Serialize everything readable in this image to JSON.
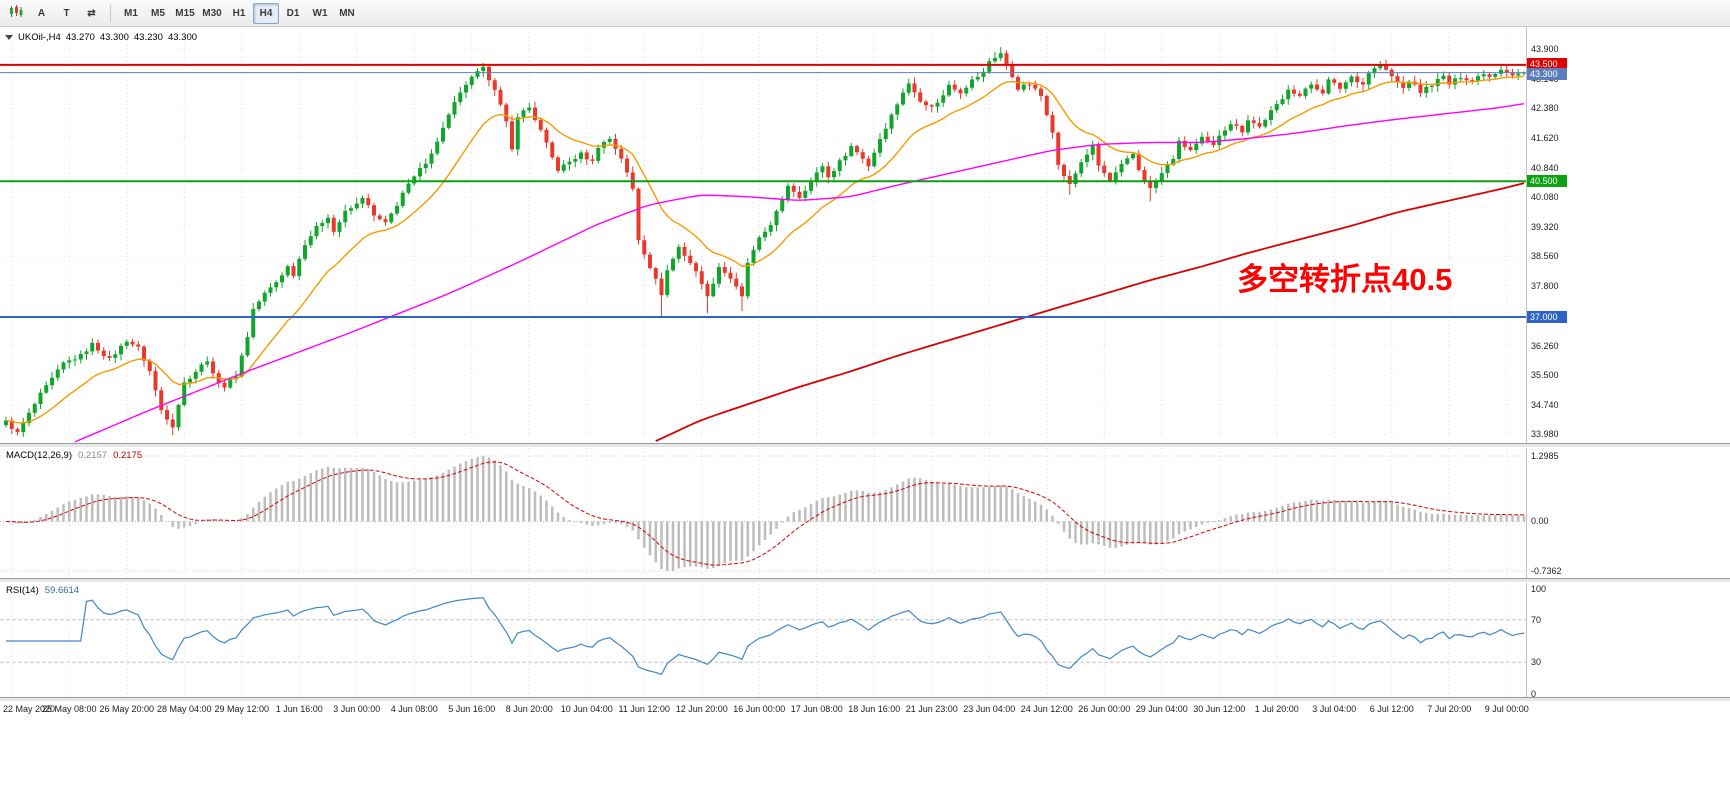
{
  "toolbar": {
    "cursor_label": "A",
    "text_label": "T",
    "cycle_label": "⇄",
    "timeframes": [
      {
        "label": "M1",
        "active": false
      },
      {
        "label": "M5",
        "active": false
      },
      {
        "label": "M15",
        "active": false
      },
      {
        "label": "M30",
        "active": false
      },
      {
        "label": "H1",
        "active": false
      },
      {
        "label": "H4",
        "active": true
      },
      {
        "label": "D1",
        "active": false
      },
      {
        "label": "W1",
        "active": false
      },
      {
        "label": "MN",
        "active": false
      }
    ]
  },
  "chart_header": {
    "symbol_period": "UKOil-,H4",
    "open": "43.270",
    "high": "43.300",
    "low": "43.230",
    "close": "43.300"
  },
  "annotation": {
    "text": "多空转折点40.5",
    "color": "#ff0000"
  },
  "price_axis": {
    "ticks": [
      {
        "label": "43.900",
        "value": 43.9
      },
      {
        "label": "43.140",
        "value": 43.14
      },
      {
        "label": "42.380",
        "value": 42.38
      },
      {
        "label": "41.620",
        "value": 41.62
      },
      {
        "label": "40.840",
        "value": 40.84
      },
      {
        "label": "40.080",
        "value": 40.08
      },
      {
        "label": "39.320",
        "value": 39.32
      },
      {
        "label": "38.560",
        "value": 38.56
      },
      {
        "label": "37.800",
        "value": 37.8
      },
      {
        "label": "36.260",
        "value": 36.26
      },
      {
        "label": "35.500",
        "value": 35.5
      },
      {
        "label": "34.740",
        "value": 34.74
      },
      {
        "label": "33.980",
        "value": 33.98
      }
    ]
  },
  "time_axis": [
    {
      "label": "22 May 2020",
      "bar": 1
    },
    {
      "label": "25 May 08:00",
      "bar": 11
    },
    {
      "label": "26 May 20:00",
      "bar": 21
    },
    {
      "label": "28 May 04:00",
      "bar": 31
    },
    {
      "label": "29 May 12:00",
      "bar": 41
    },
    {
      "label": "1 Jun 16:00",
      "bar": 51
    },
    {
      "label": "3 Jun 00:00",
      "bar": 61
    },
    {
      "label": "4 Jun 08:00",
      "bar": 71
    },
    {
      "label": "5 Jun 16:00",
      "bar": 81
    },
    {
      "label": "8 Jun 20:00",
      "bar": 91
    },
    {
      "label": "10 Jun 04:00",
      "bar": 101
    },
    {
      "label": "11 Jun 12:00",
      "bar": 111
    },
    {
      "label": "12 Jun 20:00",
      "bar": 121
    },
    {
      "label": "16 Jun 00:00",
      "bar": 131
    },
    {
      "label": "17 Jun 08:00",
      "bar": 141
    },
    {
      "label": "18 Jun 16:00",
      "bar": 151
    },
    {
      "label": "21 Jun 23:00",
      "bar": 161
    },
    {
      "label": "23 Jun 04:00",
      "bar": 171
    },
    {
      "label": "24 Jun 12:00",
      "bar": 181
    },
    {
      "label": "26 Jun 00:00",
      "bar": 191
    },
    {
      "label": "29 Jun 04:00",
      "bar": 201
    },
    {
      "label": "30 Jun 12:00",
      "bar": 211
    },
    {
      "label": "1 Jul 20:00",
      "bar": 221
    },
    {
      "label": "3 Jul 04:00",
      "bar": 231
    },
    {
      "label": "6 Jul 12:00",
      "bar": 241
    },
    {
      "label": "7 Jul 20:00",
      "bar": 251
    },
    {
      "label": "9 Jul 00:00",
      "bar": 261
    }
  ],
  "macd_panel": {
    "title": "MACD(12,26,9)",
    "value1": "0.2157",
    "value2": "0.2175",
    "axis_labels": [
      "1.2985",
      "0.00",
      "-0.7362"
    ]
  },
  "rsi_panel": {
    "title": "RSI(14)",
    "value": "59.6614",
    "axis_labels": [
      {
        "label": "100",
        "value": 100
      },
      {
        "label": "70",
        "value": 70
      },
      {
        "label": "30",
        "value": 30
      },
      {
        "label": "0",
        "value": 0
      }
    ]
  },
  "chart_data": {
    "type": "candlestick",
    "symbol": "UKOil-",
    "timeframe": "H4",
    "bars": 265,
    "last_ohlc": {
      "open": 43.27,
      "high": 43.3,
      "low": 43.23,
      "close": 43.3
    },
    "price_range_visible": [
      33.75,
      44.45
    ],
    "candle_up_color": "#11a52c",
    "candle_down_color": "#e8392c",
    "close_anchors": [
      [
        0,
        34.3
      ],
      [
        2,
        34.0
      ],
      [
        6,
        35.0
      ],
      [
        10,
        35.8
      ],
      [
        13,
        36.0
      ],
      [
        15,
        36.3
      ],
      [
        18,
        35.9
      ],
      [
        21,
        36.4
      ],
      [
        23,
        36.2
      ],
      [
        25,
        35.6
      ],
      [
        27,
        34.6
      ],
      [
        29,
        34.2
      ],
      [
        31,
        35.3
      ],
      [
        33,
        35.6
      ],
      [
        35,
        35.9
      ],
      [
        36,
        35.5
      ],
      [
        38,
        35.2
      ],
      [
        40,
        35.5
      ],
      [
        42,
        36.5
      ],
      [
        43,
        37.2
      ],
      [
        45,
        37.6
      ],
      [
        47,
        37.9
      ],
      [
        49,
        38.3
      ],
      [
        50,
        38.1
      ],
      [
        52,
        38.9
      ],
      [
        54,
        39.3
      ],
      [
        56,
        39.6
      ],
      [
        57,
        39.2
      ],
      [
        59,
        39.7
      ],
      [
        61,
        39.9
      ],
      [
        62,
        40.1
      ],
      [
        64,
        39.6
      ],
      [
        66,
        39.4
      ],
      [
        68,
        39.9
      ],
      [
        69,
        40.2
      ],
      [
        71,
        40.6
      ],
      [
        73,
        41.0
      ],
      [
        75,
        41.5
      ],
      [
        76,
        41.9
      ],
      [
        78,
        42.5
      ],
      [
        80,
        43.0
      ],
      [
        82,
        43.3
      ],
      [
        83,
        43.4
      ],
      [
        85,
        42.9
      ],
      [
        87,
        42.0
      ],
      [
        88,
        41.3
      ],
      [
        89,
        42.2
      ],
      [
        91,
        42.4
      ],
      [
        93,
        41.8
      ],
      [
        95,
        41.1
      ],
      [
        96,
        40.8
      ],
      [
        98,
        41.0
      ],
      [
        100,
        41.2
      ],
      [
        102,
        41.0
      ],
      [
        103,
        41.4
      ],
      [
        105,
        41.6
      ],
      [
        107,
        41.1
      ],
      [
        109,
        40.3
      ],
      [
        110,
        39.0
      ],
      [
        112,
        38.3
      ],
      [
        114,
        37.6
      ],
      [
        115,
        38.2
      ],
      [
        117,
        38.8
      ],
      [
        119,
        38.4
      ],
      [
        121,
        37.9
      ],
      [
        122,
        37.5
      ],
      [
        124,
        38.3
      ],
      [
        126,
        38.0
      ],
      [
        128,
        37.5
      ],
      [
        129,
        38.4
      ],
      [
        131,
        39.0
      ],
      [
        133,
        39.4
      ],
      [
        135,
        40.0
      ],
      [
        136,
        40.4
      ],
      [
        138,
        40.1
      ],
      [
        140,
        40.5
      ],
      [
        142,
        40.9
      ],
      [
        143,
        40.6
      ],
      [
        145,
        41.0
      ],
      [
        147,
        41.4
      ],
      [
        149,
        41.1
      ],
      [
        150,
        40.9
      ],
      [
        152,
        41.6
      ],
      [
        154,
        42.2
      ],
      [
        156,
        42.8
      ],
      [
        157,
        43.0
      ],
      [
        159,
        42.6
      ],
      [
        161,
        42.4
      ],
      [
        163,
        42.7
      ],
      [
        164,
        43.0
      ],
      [
        166,
        42.8
      ],
      [
        168,
        43.1
      ],
      [
        170,
        43.3
      ],
      [
        171,
        43.6
      ],
      [
        173,
        43.8
      ],
      [
        175,
        43.2
      ],
      [
        176,
        42.9
      ],
      [
        178,
        43.0
      ],
      [
        180,
        42.7
      ],
      [
        182,
        41.8
      ],
      [
        183,
        40.9
      ],
      [
        185,
        40.4
      ],
      [
        187,
        41.0
      ],
      [
        189,
        41.4
      ],
      [
        190,
        40.9
      ],
      [
        192,
        40.5
      ],
      [
        194,
        40.9
      ],
      [
        196,
        41.2
      ],
      [
        197,
        40.8
      ],
      [
        199,
        40.3
      ],
      [
        201,
        40.7
      ],
      [
        203,
        41.1
      ],
      [
        204,
        41.5
      ],
      [
        206,
        41.3
      ],
      [
        208,
        41.6
      ],
      [
        210,
        41.4
      ],
      [
        211,
        41.7
      ],
      [
        213,
        42.0
      ],
      [
        215,
        41.8
      ],
      [
        216,
        42.1
      ],
      [
        218,
        41.9
      ],
      [
        220,
        42.3
      ],
      [
        222,
        42.6
      ],
      [
        223,
        42.9
      ],
      [
        225,
        42.7
      ],
      [
        227,
        43.0
      ],
      [
        229,
        42.8
      ],
      [
        230,
        43.1
      ],
      [
        232,
        42.9
      ],
      [
        234,
        43.2
      ],
      [
        236,
        43.0
      ],
      [
        237,
        43.3
      ],
      [
        239,
        43.5
      ],
      [
        241,
        43.2
      ],
      [
        243,
        42.9
      ],
      [
        244,
        43.1
      ],
      [
        246,
        42.8
      ],
      [
        248,
        43.0
      ],
      [
        250,
        43.2
      ],
      [
        251,
        43.0
      ],
      [
        253,
        43.2
      ],
      [
        255,
        43.1
      ],
      [
        257,
        43.3
      ],
      [
        258,
        43.2
      ],
      [
        260,
        43.4
      ],
      [
        262,
        43.25
      ],
      [
        264,
        43.3
      ]
    ],
    "special_highs": [
      [
        83,
        43.55
      ],
      [
        173,
        43.95
      ],
      [
        239,
        43.6
      ]
    ],
    "special_lows": [
      [
        2,
        33.95
      ],
      [
        29,
        33.95
      ],
      [
        114,
        37.02
      ],
      [
        122,
        37.1
      ],
      [
        128,
        37.15
      ],
      [
        185,
        40.15
      ],
      [
        199,
        39.98
      ]
    ],
    "moving_averages": [
      {
        "name": "fast",
        "type": "ema",
        "period": 16,
        "color": "#f79a00"
      },
      {
        "name": "mid",
        "color": "#ff00ff",
        "anchors": [
          [
            12,
            33.78
          ],
          [
            25,
            34.6
          ],
          [
            42,
            35.6
          ],
          [
            60,
            36.6
          ],
          [
            77,
            37.6
          ],
          [
            89,
            38.4
          ],
          [
            103,
            39.4
          ],
          [
            112,
            39.9
          ],
          [
            121,
            40.15
          ],
          [
            129,
            40.1
          ],
          [
            138,
            40.0
          ],
          [
            147,
            40.1
          ],
          [
            155,
            40.4
          ],
          [
            164,
            40.7
          ],
          [
            173,
            41.0
          ],
          [
            182,
            41.3
          ],
          [
            190,
            41.45
          ],
          [
            199,
            41.5
          ],
          [
            208,
            41.5
          ],
          [
            216,
            41.6
          ],
          [
            225,
            41.75
          ],
          [
            234,
            41.95
          ],
          [
            242,
            42.1
          ],
          [
            251,
            42.25
          ],
          [
            260,
            42.4
          ],
          [
            264,
            42.5
          ]
        ]
      },
      {
        "name": "slow",
        "color": "#d80000",
        "anchors": [
          [
            113,
            33.8
          ],
          [
            121,
            34.35
          ],
          [
            129,
            34.75
          ],
          [
            138,
            35.2
          ],
          [
            147,
            35.6
          ],
          [
            155,
            36.0
          ],
          [
            164,
            36.4
          ],
          [
            173,
            36.8
          ],
          [
            182,
            37.2
          ],
          [
            190,
            37.55
          ],
          [
            199,
            37.95
          ],
          [
            208,
            38.3
          ],
          [
            216,
            38.65
          ],
          [
            225,
            39.0
          ],
          [
            234,
            39.35
          ],
          [
            242,
            39.7
          ],
          [
            251,
            40.0
          ],
          [
            260,
            40.3
          ],
          [
            264,
            40.45
          ]
        ]
      }
    ],
    "hlines": [
      {
        "label": "43.500",
        "value": 43.5,
        "color": "#e00000",
        "width": 2,
        "dy": -1,
        "role": "resistance-line"
      },
      {
        "label": "43.300",
        "value": 43.3,
        "color": "#5b7fbd",
        "width": 1,
        "dy": 1,
        "role": "current-price-line"
      },
      {
        "label": "40.500",
        "value": 40.5,
        "color": "#0da010",
        "width": 2,
        "dy": 0,
        "role": "pivot-line"
      },
      {
        "label": "37.000",
        "value": 37.0,
        "color": "#2f63c8",
        "width": 2,
        "dy": 0,
        "role": "support-line"
      }
    ],
    "macd": {
      "fast": 12,
      "slow": 26,
      "signal": 9,
      "histogram_color": "#bdbdbd",
      "signal_color": "#d40000",
      "current": [
        0.2157,
        0.2175
      ],
      "axis_max": 1.2985,
      "axis_min": -0.7362
    },
    "rsi": {
      "period": 14,
      "color": "#3f87c9",
      "current": 59.6614,
      "levels": [
        30,
        70
      ]
    },
    "annotation": {
      "text": "多空转折点40.5",
      "color": "#ff0000"
    }
  }
}
